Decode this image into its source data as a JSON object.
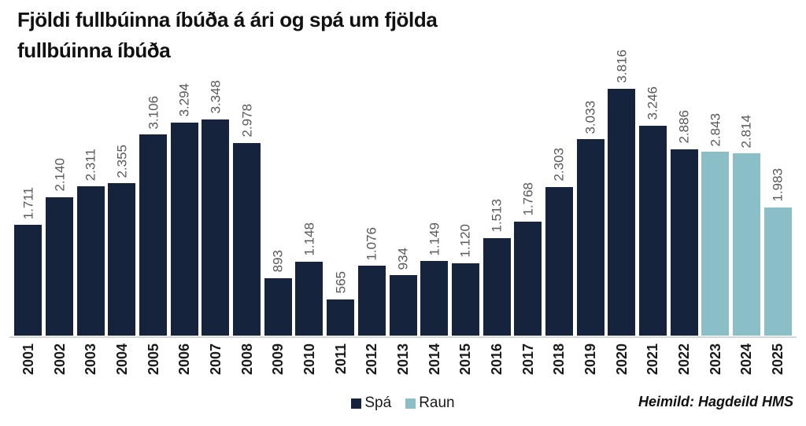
{
  "title": {
    "line1": "Fjöldi fullbúinna íbúða á ári og spá um fjölda",
    "line2": "fullbúinna íbúða"
  },
  "chart_data": {
    "type": "bar",
    "title": "Fjöldi fullbúinna íbúða á ári og spá um fjölda fullbúinna íbúða",
    "categories": [
      "2001",
      "2002",
      "2003",
      "2004",
      "2005",
      "2006",
      "2007",
      "2008",
      "2009",
      "2010",
      "2011",
      "2012",
      "2013",
      "2014",
      "2015",
      "2016",
      "2017",
      "2018",
      "2019",
      "2020",
      "2021",
      "2022",
      "2023",
      "2024",
      "2025"
    ],
    "values": [
      1711,
      2140,
      2311,
      2355,
      3106,
      3294,
      3348,
      2978,
      893,
      1148,
      565,
      1076,
      934,
      1149,
      1120,
      1513,
      1768,
      2303,
      3033,
      3816,
      3246,
      2886,
      2843,
      2814,
      1983
    ],
    "value_labels": [
      "1.711",
      "2.140",
      "2.311",
      "2.355",
      "3.106",
      "3.294",
      "3.348",
      "2.978",
      "893",
      "1.148",
      "565",
      "1.076",
      "934",
      "1.149",
      "1.120",
      "1.513",
      "1.768",
      "2.303",
      "3.033",
      "3.816",
      "3.246",
      "2.886",
      "2.843",
      "2.814",
      "1.983"
    ],
    "groups": [
      "spa",
      "spa",
      "spa",
      "spa",
      "spa",
      "spa",
      "spa",
      "spa",
      "spa",
      "spa",
      "spa",
      "spa",
      "spa",
      "spa",
      "spa",
      "spa",
      "spa",
      "spa",
      "spa",
      "spa",
      "spa",
      "spa",
      "raun",
      "raun",
      "raun"
    ],
    "series_colors": {
      "spa": "#15233C",
      "raun": "#8BBFC8"
    },
    "xlabel": "",
    "ylabel": "",
    "ylim": [
      0,
      3816
    ],
    "grid": false,
    "legend_position": "bottom-center"
  },
  "legend": {
    "items": [
      {
        "label": "Spá",
        "color": "#15233C"
      },
      {
        "label": "Raun",
        "color": "#8BBFC8"
      }
    ]
  },
  "source": "Heimild: Hagdeild HMS",
  "colors": {
    "value_label": "#595959",
    "year_label": "#1a1a1a",
    "axis_line": "#d6d6d6",
    "title_text": "#111111"
  }
}
